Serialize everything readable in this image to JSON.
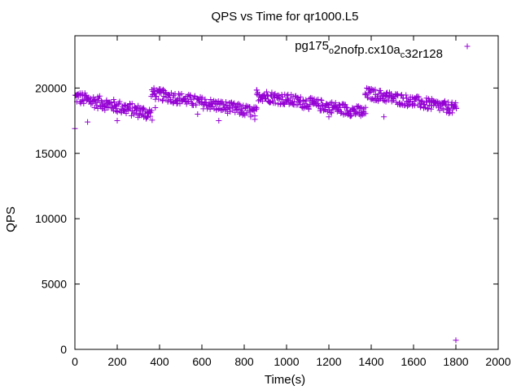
{
  "chart_data": {
    "type": "scatter",
    "title": "QPS vs Time for qr1000.L5",
    "xlabel": "Time(s)",
    "ylabel": "QPS",
    "xlim": [
      0,
      2000
    ],
    "ylim": [
      0,
      24000
    ],
    "xticks": [
      0,
      200,
      400,
      600,
      800,
      1000,
      1200,
      1400,
      1600,
      1800,
      2000
    ],
    "yticks": [
      0,
      5000,
      10000,
      15000,
      20000
    ],
    "grid": false,
    "legend_position": "top-right",
    "marker": "+",
    "series": [
      {
        "name": "pg175_o2nofp.cx10a_c32r128",
        "name_parts": [
          {
            "text": "pg175",
            "sub": false
          },
          {
            "text": "o",
            "sub": true
          },
          {
            "text": "2nofp.cx10a",
            "sub": false
          },
          {
            "text": "c",
            "sub": true
          },
          {
            "text": "32r128",
            "sub": false
          }
        ],
        "color": "#9400d3",
        "segments": [
          {
            "x_start": 0,
            "x_end": 360,
            "y_start": 19300,
            "y_end": 18000,
            "spread": 500
          },
          {
            "x_start": 360,
            "x_end": 855,
            "y_start": 19600,
            "y_end": 18100,
            "spread": 450
          },
          {
            "x_start": 855,
            "x_end": 1370,
            "y_start": 19500,
            "y_end": 18100,
            "spread": 450
          },
          {
            "x_start": 1370,
            "x_end": 1800,
            "y_start": 19600,
            "y_end": 18400,
            "spread": 450
          }
        ],
        "step": 5,
        "outliers": [
          {
            "x": 0,
            "y": 16900
          },
          {
            "x": 60,
            "y": 17400
          },
          {
            "x": 200,
            "y": 17500
          },
          {
            "x": 380,
            "y": 18500
          },
          {
            "x": 580,
            "y": 18000
          },
          {
            "x": 680,
            "y": 17500
          },
          {
            "x": 850,
            "y": 17600
          },
          {
            "x": 1200,
            "y": 17800
          },
          {
            "x": 1460,
            "y": 17800
          },
          {
            "x": 1800,
            "y": 700
          }
        ]
      }
    ]
  }
}
